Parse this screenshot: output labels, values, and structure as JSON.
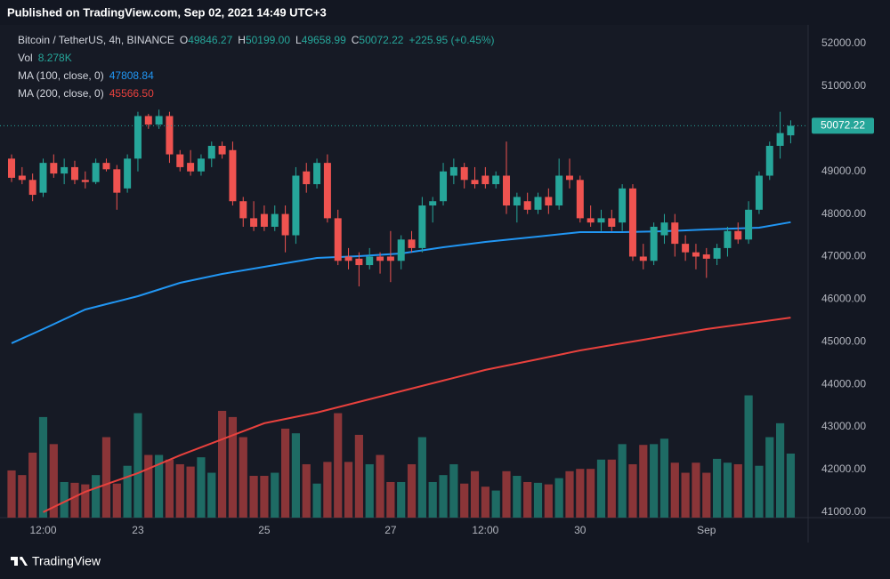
{
  "chart_data": {
    "type": "candlestick",
    "header": "Published on TradingView.com, Sep 02, 2021 14:49 UTC+3",
    "symbol": "Bitcoin / TetherUS, 4h, BINANCE",
    "ohlc_legend": [
      {
        "key": "O",
        "value": "49846.27"
      },
      {
        "key": "H",
        "value": "50199.00"
      },
      {
        "key": "L",
        "value": "49658.99"
      },
      {
        "key": "C",
        "value": "50072.22"
      }
    ],
    "change": "+225.95 (+0.45%)",
    "footer": "TradingView",
    "candles": {
      "up_color": "#26a69a",
      "down_color": "#ef5350",
      "open": [
        49300,
        48900,
        48800,
        48500,
        49200,
        48950,
        49100,
        48800,
        48750,
        49200,
        49050,
        48600,
        49300,
        50300,
        50100,
        50300,
        49400,
        49200,
        49000,
        49300,
        49600,
        49500,
        48300,
        47900,
        48000,
        47700,
        48000,
        47500,
        49000,
        48700,
        49200,
        47900,
        47000,
        46950,
        46800,
        47000,
        47000,
        46900,
        47400,
        47200,
        48200,
        48300,
        48900,
        49100,
        48800,
        48900,
        48700,
        48900,
        48200,
        48300,
        48100,
        48400,
        48200,
        48900,
        48800,
        47900,
        47800,
        47900,
        47800,
        48600,
        47000,
        46900,
        47500,
        47800,
        47300,
        47100,
        47050,
        46950,
        47200,
        47600,
        47400,
        48100,
        48900,
        49600,
        49846.27
      ],
      "high": [
        49400,
        49100,
        48950,
        49300,
        49400,
        49300,
        49250,
        49000,
        49300,
        49300,
        49150,
        49400,
        50400,
        50350,
        50450,
        50400,
        49500,
        49500,
        49400,
        49700,
        49700,
        49700,
        48400,
        48300,
        48200,
        48200,
        48200,
        49100,
        49200,
        49300,
        49400,
        48100,
        47200,
        47100,
        47200,
        47100,
        47600,
        47500,
        47600,
        48400,
        48400,
        49200,
        49300,
        49200,
        49100,
        49100,
        49000,
        49700,
        48500,
        48500,
        48500,
        48600,
        49300,
        49300,
        48900,
        48200,
        48100,
        48100,
        48700,
        48700,
        47300,
        47800,
        48000,
        48000,
        47500,
        47300,
        47200,
        47300,
        47700,
        47800,
        48300,
        49000,
        49700,
        50400,
        50199
      ],
      "low": [
        48750,
        48700,
        48300,
        48400,
        48850,
        48700,
        48700,
        48600,
        48700,
        49000,
        48100,
        48500,
        49000,
        50000,
        50000,
        49200,
        49000,
        48900,
        48900,
        49100,
        49300,
        48200,
        47700,
        47600,
        47600,
        47600,
        47100,
        47300,
        48500,
        48600,
        47800,
        46800,
        46700,
        46300,
        46700,
        46600,
        46400,
        46700,
        47100,
        47100,
        47800,
        48200,
        48700,
        48600,
        48600,
        48600,
        48600,
        48000,
        47800,
        48000,
        48000,
        48000,
        48100,
        48600,
        47800,
        47700,
        47600,
        47600,
        47600,
        46900,
        46700,
        46800,
        47300,
        47000,
        46900,
        46700,
        46500,
        46800,
        47000,
        47300,
        47300,
        48000,
        48800,
        49300,
        49658.99
      ],
      "close": [
        48850,
        48800,
        48450,
        49200,
        48950,
        49100,
        48800,
        48750,
        49200,
        49050,
        48500,
        49300,
        50300,
        50100,
        50300,
        49400,
        49100,
        49000,
        49300,
        49600,
        49400,
        48300,
        47900,
        47700,
        47700,
        48000,
        47500,
        48900,
        48700,
        49200,
        47900,
        46900,
        46900,
        46800,
        47000,
        46900,
        46900,
        47400,
        47200,
        48200,
        48300,
        49000,
        49100,
        48800,
        48700,
        48700,
        48900,
        48200,
        48400,
        48100,
        48400,
        48200,
        48900,
        48800,
        47900,
        47800,
        47900,
        47700,
        48600,
        47000,
        46900,
        47700,
        47800,
        47300,
        47100,
        47000,
        46950,
        47200,
        47600,
        47400,
        48100,
        48900,
        49600,
        49900,
        50072.22
      ]
    },
    "volume": {
      "name": "Vol",
      "up_color": "#1e6b64",
      "down_color": "#8a3538",
      "values": [
        6.1,
        5.5,
        8.4,
        13,
        9.5,
        4.6,
        4.5,
        4.3,
        5.5,
        10.4,
        4.4,
        6.7,
        13.5,
        8.1,
        8.1,
        7.5,
        6.9,
        6.6,
        7.8,
        5.8,
        13.8,
        13,
        10.4,
        5.4,
        5.4,
        5.8,
        11.5,
        10.9,
        6.9,
        4.4,
        7.2,
        13.5,
        7.2,
        10.7,
        6.9,
        8.1,
        4.6,
        4.6,
        6.9,
        10.4,
        4.6,
        5.5,
        6.9,
        4.4,
        6.0,
        4.0,
        3.5,
        6.0,
        5.4,
        4.6,
        4.5,
        4.3,
        5.1,
        6.0,
        6.3,
        6.3,
        7.5,
        7.5,
        9.5,
        6.9,
        9.4,
        9.5,
        10.2,
        7.1,
        5.8,
        7.1,
        5.8,
        7.6,
        7.1,
        6.9,
        15.8,
        6.7,
        10.4,
        12.2,
        8.278
      ],
      "value_labels": [
        null,
        null,
        null,
        null,
        null,
        null,
        null,
        null,
        null,
        null,
        null,
        null,
        null,
        null,
        null,
        null,
        null,
        null,
        null,
        null,
        null,
        null,
        null,
        null,
        null,
        null,
        null,
        null,
        null,
        null,
        null,
        null,
        null,
        null,
        null,
        null,
        null,
        null,
        null,
        null,
        null,
        null,
        null,
        null,
        null,
        null,
        null,
        null,
        null,
        null,
        null,
        null,
        null,
        null,
        null,
        null,
        null,
        null,
        null,
        null,
        null,
        null,
        null,
        null,
        null,
        null,
        null,
        null,
        null,
        null,
        null,
        null,
        null,
        null,
        "8.278K"
      ]
    },
    "series": [
      {
        "name": "MA (100, close, 0)",
        "color": "#2196f3",
        "x": [
          0,
          3,
          7,
          12,
          16,
          20,
          24,
          29,
          33,
          37,
          41,
          45,
          50,
          54,
          58,
          62,
          66,
          71,
          74
        ],
        "values": [
          44965,
          45298,
          45758,
          46071,
          46384,
          46593,
          46760,
          46969,
          47010,
          47073,
          47219,
          47344,
          47470,
          47574,
          47574,
          47595,
          47637,
          47678,
          47808.84
        ]
      },
      {
        "name": "MA (200, close, 0)",
        "color": "#e8413d",
        "x": [
          3,
          7,
          12,
          16,
          20,
          24,
          29,
          33,
          37,
          41,
          45,
          50,
          54,
          58,
          62,
          66,
          71,
          74
        ],
        "values": [
          41000,
          41478,
          41916,
          42334,
          42710,
          43086,
          43336,
          43587,
          43837,
          44088,
          44338,
          44589,
          44797,
          44964,
          45131,
          45298,
          45465,
          45566.5
        ],
        "value_labels": [
          null,
          null,
          null,
          null,
          null,
          null,
          null,
          null,
          null,
          null,
          null,
          null,
          null,
          null,
          null,
          null,
          null,
          "45566.50"
        ]
      }
    ],
    "ylim": [
      40870,
      52440
    ],
    "yticks": [
      {
        "value": 41000,
        "label": "41000.00"
      },
      {
        "value": 42000,
        "label": "42000.00"
      },
      {
        "value": 43000,
        "label": "43000.00"
      },
      {
        "value": 44000,
        "label": "44000.00"
      },
      {
        "value": 45000,
        "label": "45000.00"
      },
      {
        "value": 46000,
        "label": "46000.00"
      },
      {
        "value": 47000,
        "label": "47000.00"
      },
      {
        "value": 48000,
        "label": "48000.00"
      },
      {
        "value": 49000,
        "label": "49000.00"
      },
      {
        "value": 50000,
        "label": "50000.00"
      },
      {
        "value": 51000,
        "label": "51000.00"
      },
      {
        "value": 52000,
        "label": "52000.00"
      }
    ],
    "xticks": [
      {
        "value": 3,
        "label": "12:00"
      },
      {
        "value": 12,
        "label": "23"
      },
      {
        "value": 24,
        "label": "25"
      },
      {
        "value": 36,
        "label": "27"
      },
      {
        "value": 45,
        "label": "12:00"
      },
      {
        "value": 54,
        "label": "30"
      },
      {
        "value": 66,
        "label": "Sep"
      }
    ],
    "grid": false
  }
}
